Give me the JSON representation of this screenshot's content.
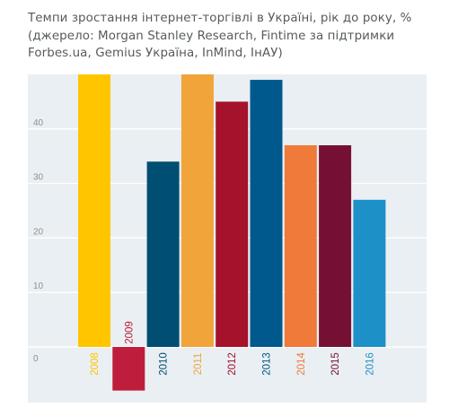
{
  "chart_data": {
    "type": "bar",
    "title_lines": [
      "Темпи зростання інтернет-торгівлі в Україні, рік до року, %",
      "(джерело: Morgan Stanley Research, Fintime за підтримки",
      "Forbes.ua, Gemius Україна, InMind, ІнАУ)"
    ],
    "xlabel": "",
    "ylabel": "",
    "categories": [
      "2008",
      "2009",
      "2010",
      "2011",
      "2012",
      "2013",
      "2014",
      "2015",
      "2016"
    ],
    "values": [
      50,
      -8,
      34,
      50,
      45,
      49,
      37,
      37,
      27
    ],
    "bar_colors": [
      "#ffc600",
      "#be1e3c",
      "#004e71",
      "#f0a43a",
      "#a5122b",
      "#00598c",
      "#ef7a3a",
      "#751034",
      "#1e90c8"
    ],
    "yticks": [
      0,
      10,
      20,
      30,
      40
    ],
    "ylim": [
      -8.4,
      50
    ],
    "grid": true,
    "background": "#eaeff3",
    "gridline_color": "#ffffff"
  }
}
